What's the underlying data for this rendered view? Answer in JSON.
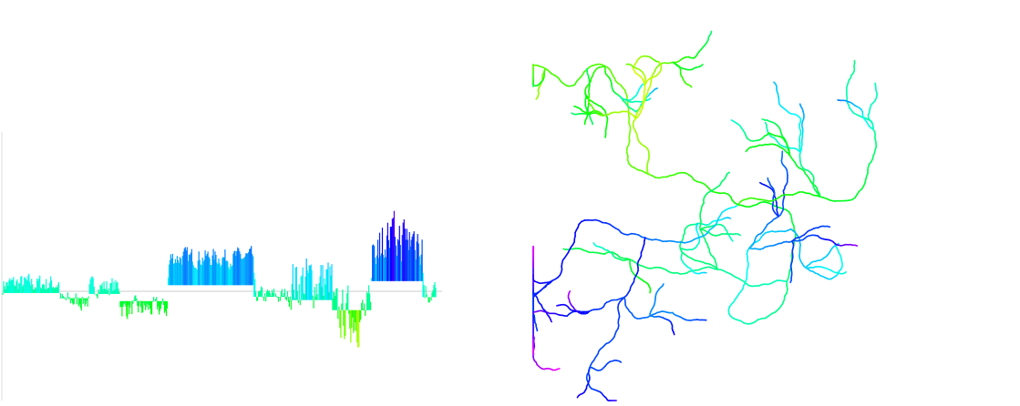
{
  "panels": [
    {
      "id": "walk-profile",
      "kind": "height-profile",
      "baseline_value": 0,
      "colors": [
        "#ff0000",
        "#ff00ff",
        "#0000ff",
        "#00ffff",
        "#00ff00",
        "#ffff00",
        "#ff0000"
      ],
      "segments": [
        {
          "from": 0.0,
          "to": 0.13,
          "level": 0.08,
          "jitter": 0.14
        },
        {
          "from": 0.13,
          "to": 0.2,
          "level": -0.1,
          "jitter": 0.14
        },
        {
          "from": 0.2,
          "to": 0.27,
          "level": 0.05,
          "jitter": 0.14
        },
        {
          "from": 0.27,
          "to": 0.38,
          "level": -0.18,
          "jitter": 0.16
        },
        {
          "from": 0.38,
          "to": 0.58,
          "level": 0.35,
          "jitter": 0.14
        },
        {
          "from": 0.58,
          "to": 0.66,
          "level": -0.05,
          "jitter": 0.14
        },
        {
          "from": 0.66,
          "to": 0.76,
          "level": 0.1,
          "jitter": 0.4
        },
        {
          "from": 0.76,
          "to": 0.85,
          "level": -0.25,
          "jitter": 0.4
        },
        {
          "from": 0.85,
          "to": 0.97,
          "level": 0.9,
          "jitter": 0.55
        },
        {
          "from": 0.97,
          "to": 1.0,
          "level": 0.0,
          "jitter": 0.2
        }
      ],
      "y_range": [
        -1.2,
        1.6
      ]
    },
    {
      "id": "random-tree",
      "kind": "branching-tree",
      "colors": [
        "#ff0000",
        "#ffff00",
        "#00ff00",
        "#00ffff",
        "#0000ff",
        "#ff00ff"
      ]
    }
  ]
}
